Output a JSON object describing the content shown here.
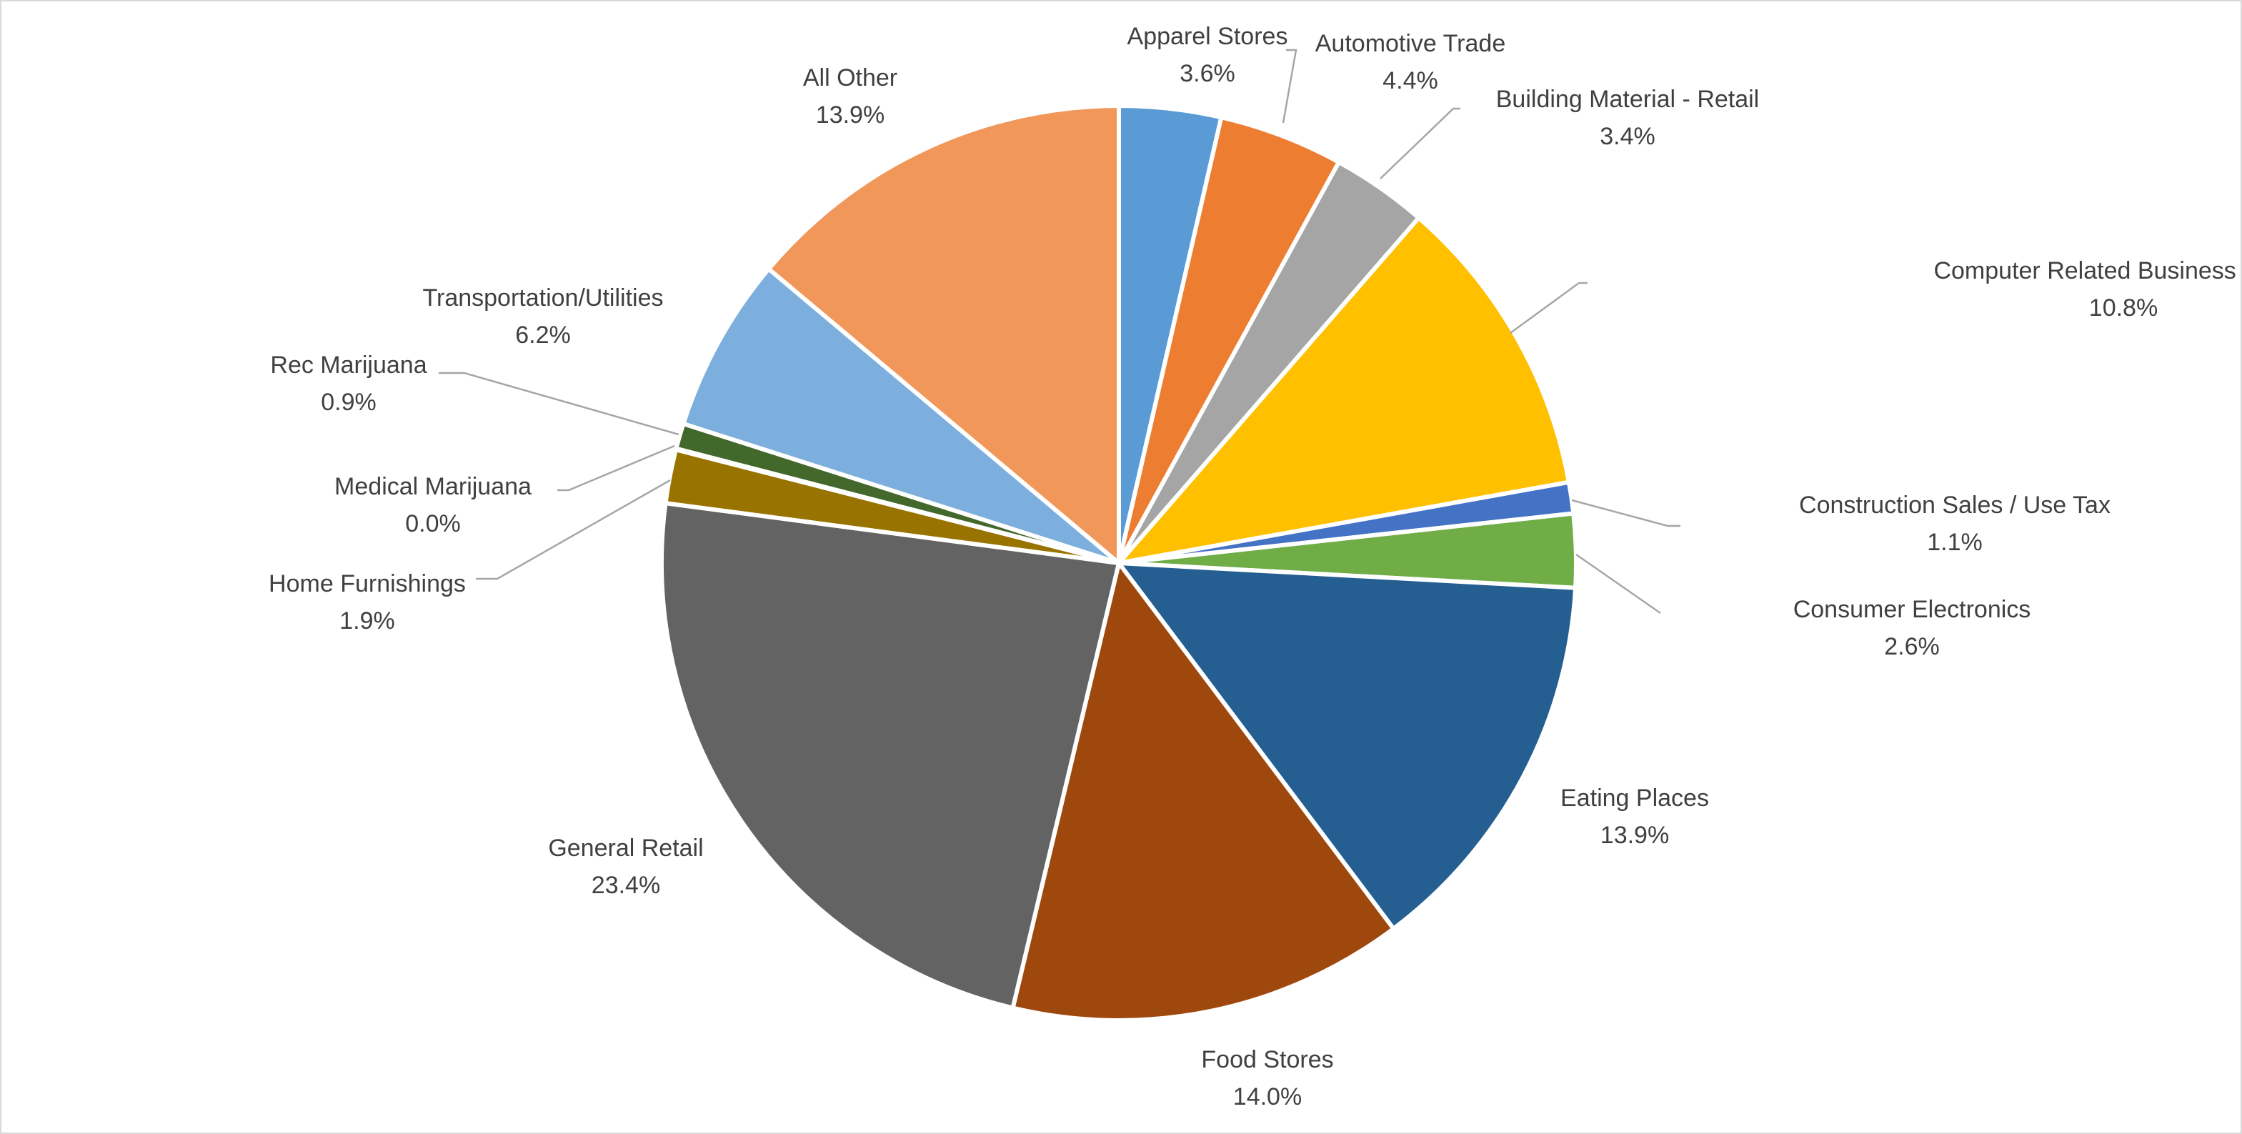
{
  "chart_data": {
    "type": "pie",
    "title": "",
    "start_angle_deg": 0,
    "direction": "clockwise",
    "slices": [
      {
        "name": "Apparel Stores",
        "label": "3.6%",
        "value": 3.6,
        "color": "#5B9BD5"
      },
      {
        "name": "Automotive Trade",
        "label": "4.4%",
        "value": 4.4,
        "color": "#ED7D31"
      },
      {
        "name": "Building Material - Retail",
        "label": "3.4%",
        "value": 3.4,
        "color": "#A5A5A5"
      },
      {
        "name": "Computer Related Business Sector",
        "label": "10.8%",
        "value": 10.8,
        "color": "#FFC000"
      },
      {
        "name": "Construction Sales / Use Tax",
        "label": "1.1%",
        "value": 1.1,
        "color": "#4472C4"
      },
      {
        "name": "Consumer Electronics",
        "label": "2.6%",
        "value": 2.6,
        "color": "#70AD47"
      },
      {
        "name": "Eating Places",
        "label": "13.9%",
        "value": 13.9,
        "color": "#255E91"
      },
      {
        "name": "Food Stores",
        "label": "14.0%",
        "value": 14.0,
        "color": "#9E480E"
      },
      {
        "name": "General Retail",
        "label": "23.4%",
        "value": 23.4,
        "color": "#636363"
      },
      {
        "name": "Home Furnishings",
        "label": "1.9%",
        "value": 1.9,
        "color": "#997300"
      },
      {
        "name": "Medical Marijuana",
        "label": "0.0%",
        "value": 0.04,
        "color": "#264478"
      },
      {
        "name": "Rec Marijuana",
        "label": "0.9%",
        "value": 0.9,
        "color": "#43682B"
      },
      {
        "name": "Transportation/Utilities",
        "label": "6.2%",
        "value": 6.2,
        "color": "#7CAFDD"
      },
      {
        "name": "All Other",
        "label": "13.9%",
        "value": 13.9,
        "color": "#F1975A"
      }
    ],
    "legend": "none",
    "data_labels": "category name and percentage"
  }
}
